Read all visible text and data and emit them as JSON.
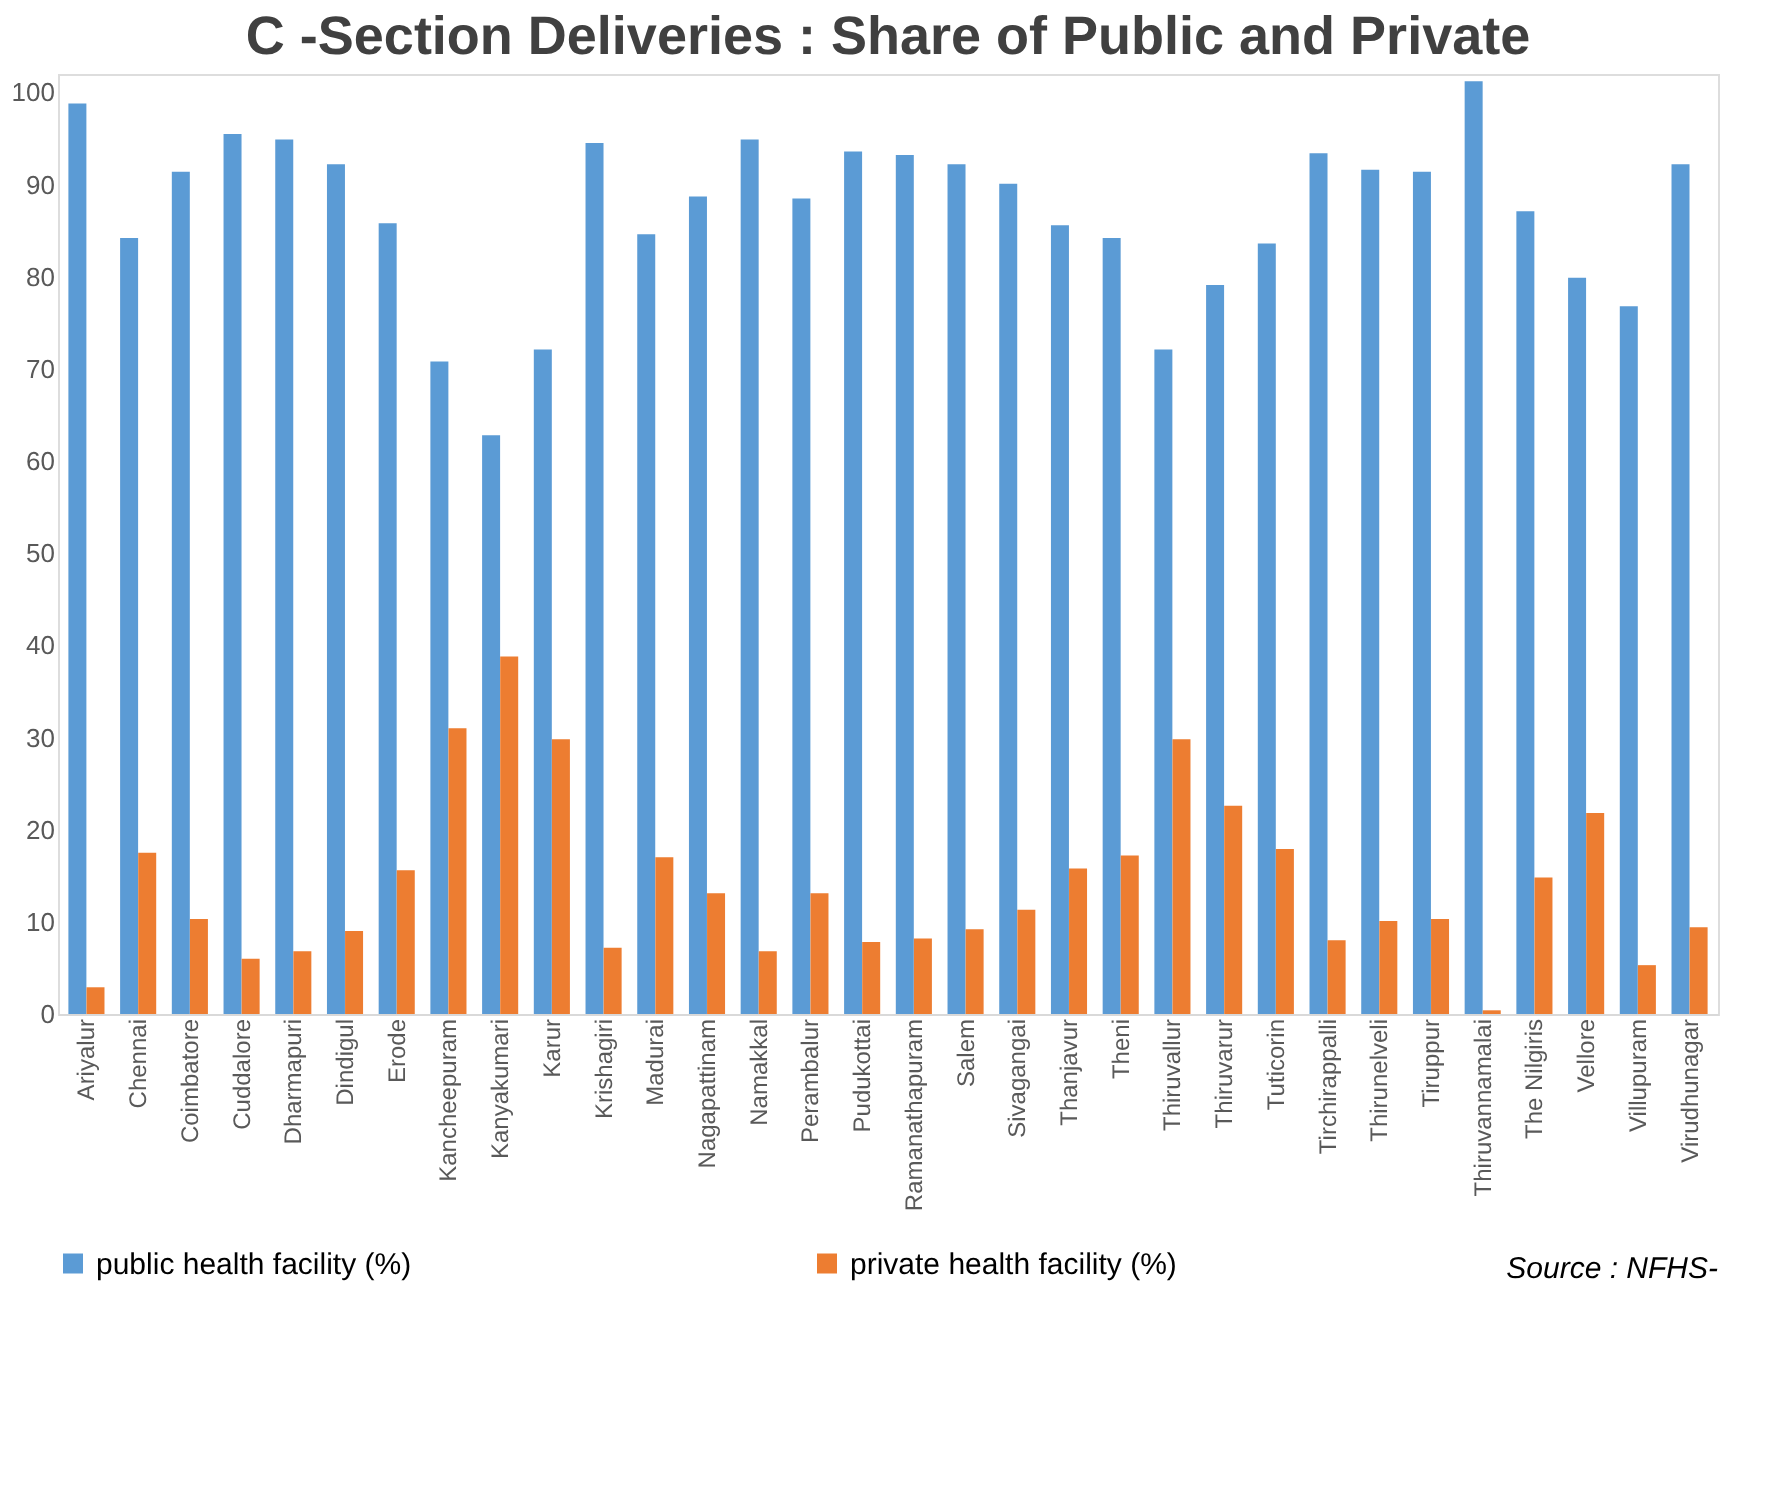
{
  "chart_data": {
    "type": "bar",
    "title": "C -Section Deliveries : Share of Public and Private",
    "categories": [
      "Ariyalur",
      "Chennai",
      "Coimbatore",
      "Cuddalore",
      "Dharmapuri",
      "Dindigul",
      "Erode",
      "Kancheepuram",
      "Kanyakumari",
      "Karur",
      "Krishagiri",
      "Madurai",
      "Nagapattinam",
      "Namakkal",
      "Perambalur",
      "Pudukottai",
      "Ramanathapuram",
      "Salem",
      "Sivagangai",
      "Thanjavur",
      "Theni",
      "Thiruvallur",
      "Thiruvarur",
      "Tuticorin",
      "Tirchirappalli",
      "Thirunelveli",
      "Tiruppur",
      "Thiruvannamalai",
      "The Nilgiris",
      "Vellore",
      "Villupuram",
      "Virudhunagar"
    ],
    "series": [
      {
        "name": "public health facility (%)",
        "color": "#5b9bd5",
        "values": [
          98.8,
          84.2,
          91.4,
          95.5,
          94.9,
          92.2,
          85.8,
          70.8,
          62.8,
          72.1,
          94.5,
          84.6,
          88.7,
          94.9,
          88.5,
          93.6,
          93.2,
          92.2,
          90.1,
          85.6,
          84.2,
          72.1,
          79.1,
          83.6,
          93.4,
          91.6,
          91.4,
          101.2,
          87.1,
          79.9,
          76.8,
          92.2
        ]
      },
      {
        "name": "private health facility (%)",
        "color": "#ed7d31",
        "values": [
          2.9,
          17.5,
          10.3,
          6.0,
          6.8,
          9.0,
          15.6,
          31.0,
          38.8,
          29.8,
          7.2,
          17.0,
          13.1,
          6.8,
          13.1,
          7.8,
          8.2,
          9.2,
          11.3,
          15.8,
          17.2,
          29.8,
          22.6,
          17.9,
          8.0,
          10.1,
          10.3,
          0.4,
          14.8,
          21.8,
          5.3,
          9.4
        ]
      }
    ],
    "ylim": [
      0,
      102
    ],
    "yticks": [
      0,
      10,
      20,
      30,
      40,
      50,
      60,
      70,
      80,
      90,
      100
    ],
    "grid": false,
    "legend": "bottom",
    "annotations": [
      "Source : NFHS-"
    ]
  }
}
